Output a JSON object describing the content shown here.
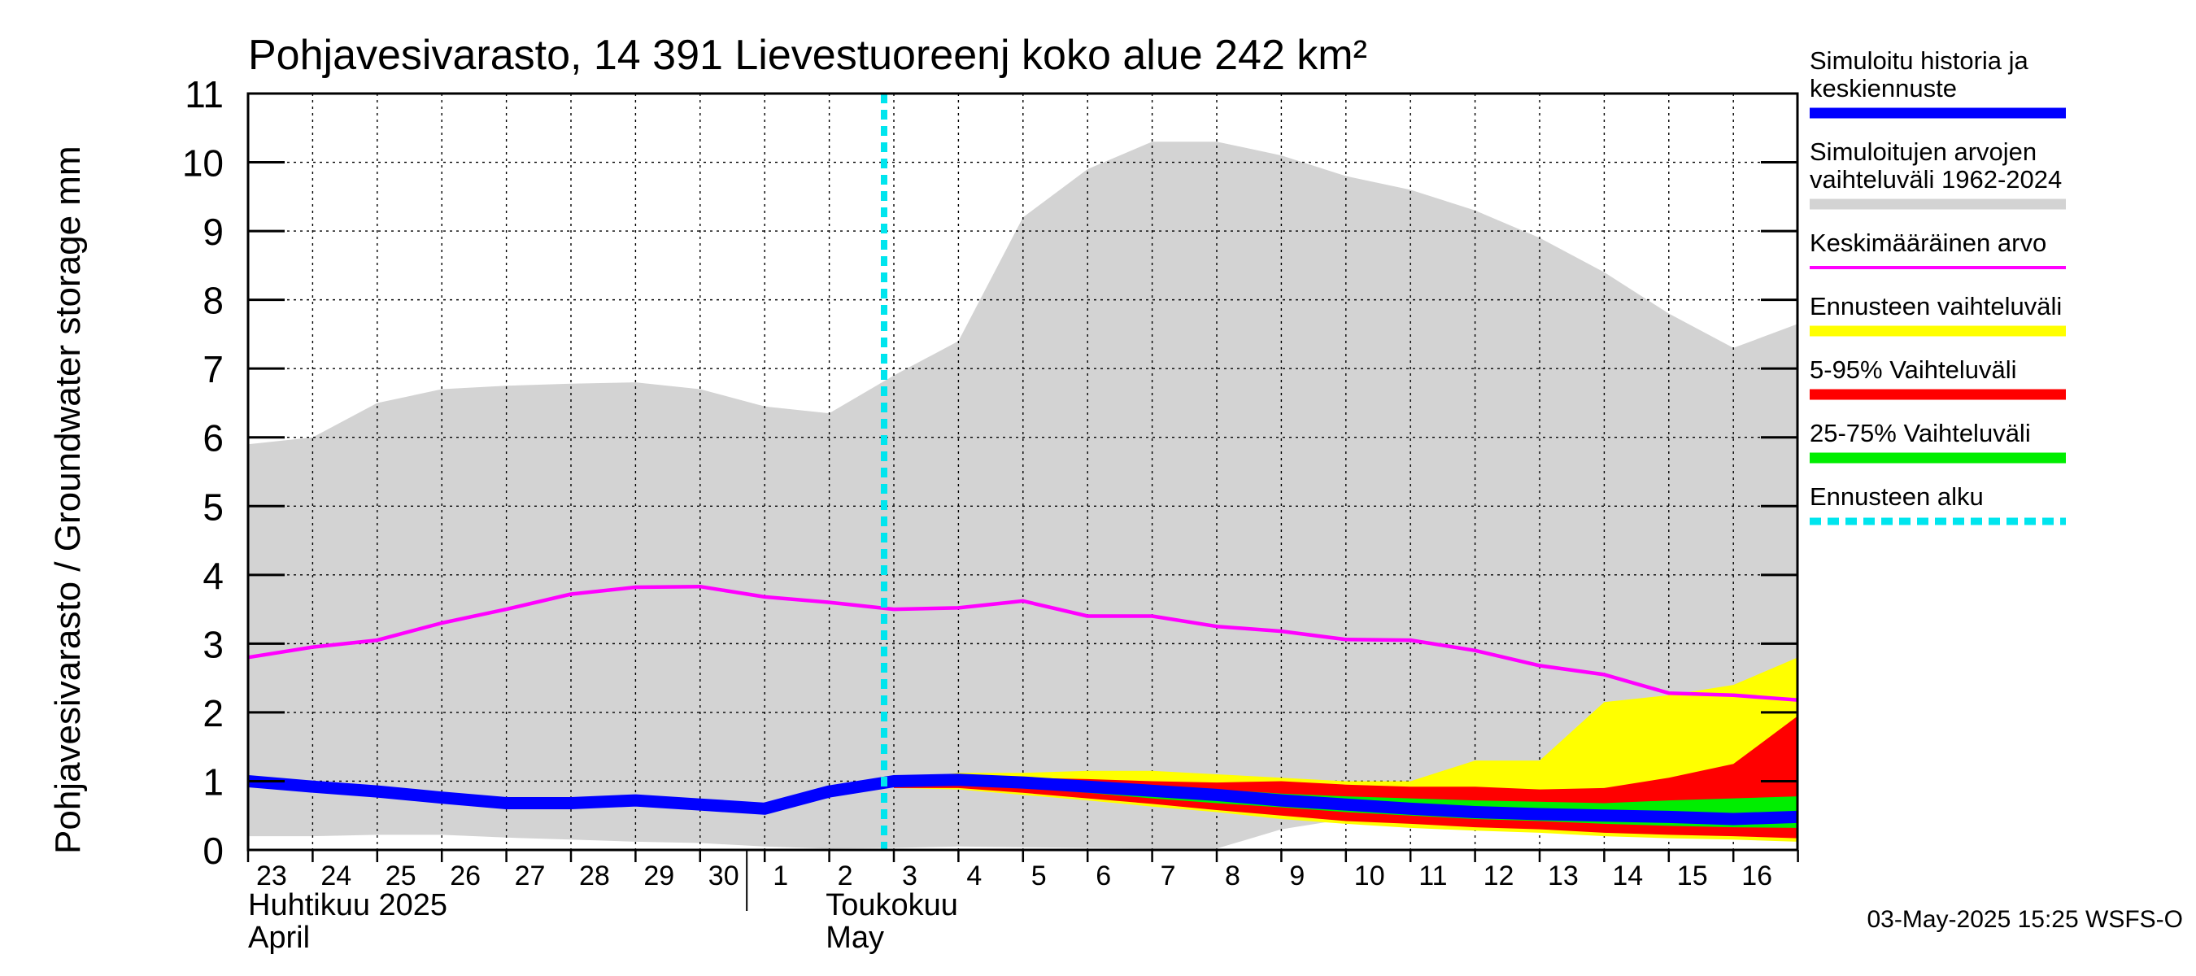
{
  "chart_data": {
    "type": "area",
    "title": "Pohjavesivarasto, 14 391 Lievestuoreenj koko alue 242 km²",
    "ylabel": "Pohjavesivarasto / Groundwater storage   mm",
    "ylim": [
      0,
      11
    ],
    "yticks": [
      "0",
      "1",
      "2",
      "3",
      "4",
      "5",
      "6",
      "7",
      "8",
      "9",
      "10",
      "11"
    ],
    "x_labels": [
      "23",
      "24",
      "25",
      "26",
      "27",
      "28",
      "29",
      "30",
      "1",
      "2",
      "3",
      "4",
      "5",
      "6",
      "7",
      "8",
      "9",
      "10",
      "11",
      "12",
      "13",
      "14",
      "15",
      "16"
    ],
    "months": [
      {
        "line1": "Huhtikuu  2025",
        "line2": "April"
      },
      {
        "line1": "Toukokuu",
        "line2": "May"
      }
    ],
    "forecast_start_index": 10,
    "grid": true,
    "legend_position": "right",
    "footer": "03-May-2025 15:25 WSFS-O",
    "series": [
      {
        "name": "Simuloitujen arvojen vaihteluväli 1962-2024",
        "color": "#d3d3d3",
        "upper": [
          5.9,
          6.0,
          6.5,
          6.7,
          6.75,
          6.78,
          6.8,
          6.7,
          6.45,
          6.35,
          6.9,
          7.4,
          9.2,
          9.9,
          10.3,
          10.3,
          10.1,
          9.8,
          9.6,
          9.3,
          8.9,
          8.4,
          7.8,
          7.3,
          7.65
        ],
        "lower": [
          0.2,
          0.2,
          0.22,
          0.22,
          0.18,
          0.15,
          0.12,
          0.1,
          0.05,
          0.02,
          0.03,
          0.05,
          0.04,
          0.03,
          0.02,
          0.02,
          0.3,
          0.45,
          0.5,
          0.5,
          0.48,
          0.45,
          0.4,
          0.35,
          0.3
        ]
      },
      {
        "name": "Keskimääräinen arvo",
        "color": "#ff00ff",
        "values": [
          2.8,
          2.95,
          3.05,
          3.3,
          3.5,
          3.72,
          3.82,
          3.83,
          3.68,
          3.6,
          3.5,
          3.52,
          3.62,
          3.4,
          3.4,
          3.25,
          3.18,
          3.06,
          3.05,
          2.9,
          2.68,
          2.55,
          2.28,
          2.25,
          2.18
        ]
      },
      {
        "name": "Ennusteen vaihteluväli",
        "color": "#ffff00",
        "upper": [
          null,
          null,
          null,
          null,
          null,
          null,
          null,
          null,
          null,
          null,
          1.02,
          1.12,
          1.12,
          1.15,
          1.15,
          1.1,
          1.05,
          1.0,
          1.0,
          1.3,
          1.3,
          2.15,
          2.25,
          2.4,
          2.8
        ],
        "lower": [
          null,
          null,
          null,
          null,
          null,
          null,
          null,
          null,
          null,
          null,
          0.9,
          0.88,
          0.8,
          0.72,
          0.63,
          0.55,
          0.45,
          0.38,
          0.32,
          0.28,
          0.25,
          0.2,
          0.17,
          0.15,
          0.12
        ]
      },
      {
        "name": "5-95% Vaihteluväli",
        "color": "#ff0000",
        "upper": [
          null,
          null,
          null,
          null,
          null,
          null,
          null,
          null,
          null,
          null,
          1.0,
          1.08,
          1.05,
          1.03,
          1.0,
          0.98,
          1.0,
          0.95,
          0.92,
          0.92,
          0.88,
          0.9,
          1.05,
          1.25,
          1.95
        ],
        "lower": [
          null,
          null,
          null,
          null,
          null,
          null,
          null,
          null,
          null,
          null,
          0.9,
          0.9,
          0.83,
          0.75,
          0.67,
          0.58,
          0.5,
          0.42,
          0.38,
          0.33,
          0.3,
          0.25,
          0.22,
          0.2,
          0.17
        ]
      },
      {
        "name": "25-75% Vaihteluväli",
        "color": "#00ee00",
        "upper": [
          null,
          null,
          null,
          null,
          null,
          null,
          null,
          null,
          null,
          null,
          1.0,
          1.05,
          1.0,
          0.97,
          0.92,
          0.88,
          0.82,
          0.78,
          0.75,
          0.72,
          0.7,
          0.68,
          0.72,
          0.75,
          0.78
        ],
        "lower": [
          null,
          null,
          null,
          null,
          null,
          null,
          null,
          null,
          null,
          null,
          0.95,
          0.95,
          0.9,
          0.83,
          0.75,
          0.68,
          0.62,
          0.55,
          0.5,
          0.45,
          0.42,
          0.38,
          0.35,
          0.33,
          0.32
        ]
      },
      {
        "name": "Simuloitu historia ja keskiennuste",
        "color": "#0000ff",
        "values": [
          1.0,
          0.92,
          0.85,
          0.76,
          0.68,
          0.68,
          0.72,
          0.66,
          0.6,
          0.85,
          1.0,
          1.02,
          0.98,
          0.92,
          0.86,
          0.8,
          0.72,
          0.66,
          0.6,
          0.55,
          0.52,
          0.5,
          0.48,
          0.45,
          0.48
        ]
      }
    ],
    "legend": [
      {
        "lines": [
          "Simuloitu historia ja",
          "keskiennuste"
        ],
        "color": "#0000ff",
        "style": "solid"
      },
      {
        "lines": [
          "Simuloitujen arvojen",
          "vaihteluväli 1962-2024"
        ],
        "color": "#d3d3d3",
        "style": "solid"
      },
      {
        "lines": [
          "Keskimääräinen arvo"
        ],
        "color": "#ff00ff",
        "style": "thin"
      },
      {
        "lines": [
          "Ennusteen vaihteluväli"
        ],
        "color": "#ffff00",
        "style": "solid"
      },
      {
        "lines": [
          "5-95% Vaihteluväli"
        ],
        "color": "#ff0000",
        "style": "solid"
      },
      {
        "lines": [
          "25-75% Vaihteluväli"
        ],
        "color": "#00ee00",
        "style": "solid"
      },
      {
        "lines": [
          "Ennusteen alku"
        ],
        "color": "#00e5ee",
        "style": "dashed"
      }
    ]
  }
}
